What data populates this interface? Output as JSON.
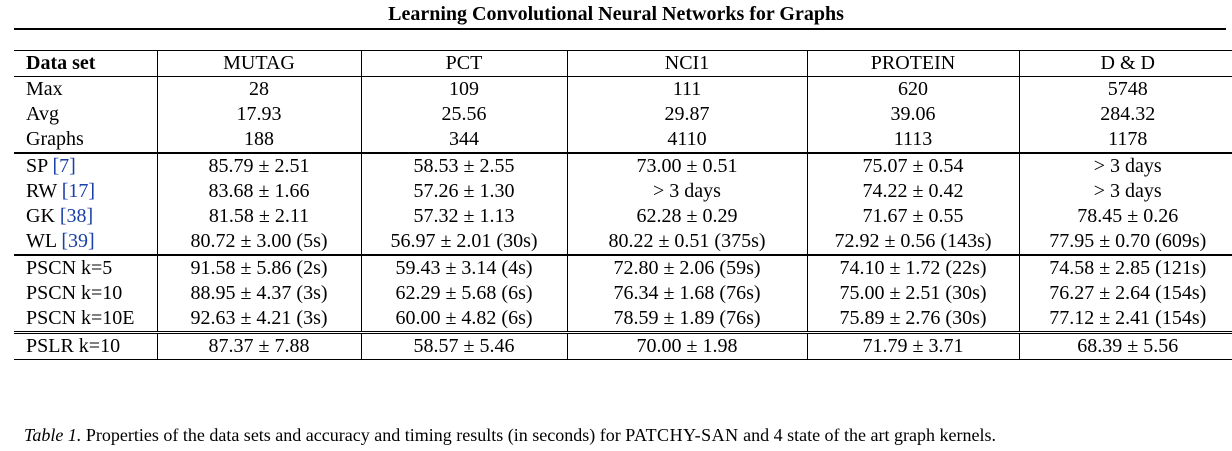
{
  "running_head": "Learning Convolutional Neural Networks for Graphs",
  "table": {
    "header": {
      "label": "Data set",
      "columns": [
        "MUTAG",
        "PCT",
        "NCI1",
        "PROTEIN",
        "D & D"
      ]
    },
    "rows": [
      {
        "label": "Max",
        "cite": "",
        "cells": [
          "28",
          "109",
          "111",
          "620",
          "5748"
        ]
      },
      {
        "label": "Avg",
        "cite": "",
        "cells": [
          "17.93",
          "25.56",
          "29.87",
          "39.06",
          "284.32"
        ]
      },
      {
        "label": "Graphs",
        "cite": "",
        "cells": [
          "188",
          "344",
          "4110",
          "1113",
          "1178"
        ]
      },
      {
        "label": "SP",
        "cite": "[7]",
        "cells": [
          "85.79 ± 2.51",
          "58.53 ± 2.55",
          "73.00 ± 0.51",
          "75.07 ± 0.54",
          "> 3 days"
        ]
      },
      {
        "label": "RW",
        "cite": "[17]",
        "cells": [
          "83.68 ± 1.66",
          "57.26 ± 1.30",
          "> 3 days",
          "74.22 ± 0.42",
          "> 3 days"
        ]
      },
      {
        "label": "GK",
        "cite": "[38]",
        "cells": [
          "81.58 ± 2.11",
          "57.32 ± 1.13",
          "62.28 ± 0.29",
          "71.67 ± 0.55",
          "78.45 ± 0.26"
        ]
      },
      {
        "label": "WL",
        "cite": "[39]",
        "cells": [
          "80.72 ± 3.00 (5s)",
          "56.97 ± 2.01 (30s)",
          "80.22 ± 0.51 (375s)",
          "72.92 ± 0.56 (143s)",
          "77.95 ± 0.70 (609s)"
        ]
      },
      {
        "label": "PSCN k=5",
        "cite": "",
        "cells": [
          "91.58 ± 5.86 (2s)",
          "59.43 ± 3.14 (4s)",
          "72.80 ± 2.06 (59s)",
          "74.10 ± 1.72 (22s)",
          "74.58 ± 2.85 (121s)"
        ]
      },
      {
        "label": "PSCN k=10",
        "cite": "",
        "cells": [
          "88.95 ± 4.37 (3s)",
          "62.29 ± 5.68 (6s)",
          "76.34 ± 1.68 (76s)",
          "75.00 ± 2.51 (30s)",
          "76.27 ± 2.64 (154s)"
        ]
      },
      {
        "label": "PSCN k=10E",
        "cite": "",
        "cells": [
          "92.63 ± 4.21 (3s)",
          "60.00 ± 4.82 (6s)",
          "78.59 ± 1.89 (76s)",
          "75.89 ± 2.76 (30s)",
          "77.12 ± 2.41 (154s)"
        ]
      },
      {
        "label": "PSLR k=10",
        "cite": "",
        "cells": [
          "87.37 ± 7.88",
          "58.57 ± 5.46",
          "70.00 ± 1.98",
          "71.79 ± 3.71",
          "68.39 ± 5.56"
        ]
      }
    ]
  },
  "caption": {
    "label": "Table 1.",
    "text_before": "Properties of the data sets and accuracy and timing results (in seconds) for",
    "method": "PATCHY-SAN",
    "text_after": "and 4 state of the art graph kernels."
  },
  "colors": {
    "text": "#000000",
    "citation": "#1a3fa8"
  }
}
